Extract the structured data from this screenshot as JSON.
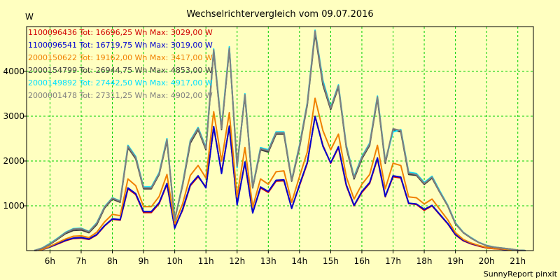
{
  "chart_data": {
    "type": "line",
    "title": "Wechselrichtervergleich vom 09.07.2016",
    "ylabel": "W",
    "xlabel": "",
    "credit": "SunnyReport pinxit",
    "grid": true,
    "grid_color": "#00d000",
    "background": "#ffffc0",
    "plot_background": "#ffffc0",
    "x_unit": "hour",
    "xlim": [
      5.25,
      21.5
    ],
    "ylim": [
      0,
      5000
    ],
    "x_ticks": [
      6,
      7,
      8,
      9,
      10,
      11,
      12,
      13,
      14,
      15,
      16,
      17,
      18,
      19,
      20,
      21
    ],
    "x_tick_labels": [
      "6h",
      "7h",
      "8h",
      "9h",
      "10h",
      "11h",
      "12h",
      "13h",
      "14h",
      "15h",
      "16h",
      "17h",
      "18h",
      "19h",
      "20h",
      "21h"
    ],
    "y_ticks": [
      1000,
      2000,
      3000,
      4000
    ],
    "y_tick_labels": [
      "1000",
      "2000",
      "3000",
      "4000"
    ],
    "legend": [
      {
        "text": "1100096436 Tot: 16696,25 Wh Max: 3029,00 W",
        "color": "#d00000"
      },
      {
        "text": "1100096541 Tot: 16719,75 Wh Max: 3019,00 W",
        "color": "#0000d0"
      },
      {
        "text": "2000150622 Tot: 19162,00 Wh Max: 3417,00 W",
        "color": "#f08000"
      },
      {
        "text": "2000154799 Tot: 26944,75 Wh Max: 4853,00 W",
        "color": "#404040"
      },
      {
        "text": "2000149892 Tot: 27442,50 Wh Max: 4917,00 W",
        "color": "#00e0ff"
      },
      {
        "text": "2000001478 Tot: 27311,25 Wh Max: 4902,00 W",
        "color": "#808080"
      }
    ],
    "x": [
      5.5,
      5.75,
      6.0,
      6.25,
      6.5,
      6.75,
      7.0,
      7.25,
      7.5,
      7.75,
      8.0,
      8.25,
      8.5,
      8.75,
      9.0,
      9.25,
      9.5,
      9.75,
      10.0,
      10.25,
      10.5,
      10.75,
      11.0,
      11.25,
      11.5,
      11.75,
      12.0,
      12.25,
      12.5,
      12.75,
      13.0,
      13.25,
      13.5,
      13.75,
      14.0,
      14.25,
      14.5,
      14.75,
      15.0,
      15.25,
      15.5,
      15.75,
      16.0,
      16.25,
      16.5,
      16.75,
      17.0,
      17.25,
      17.5,
      17.75,
      18.0,
      18.25,
      18.5,
      18.75,
      19.0,
      19.25,
      19.5,
      19.75,
      20.0,
      20.25,
      20.5,
      20.75,
      21.0,
      21.25
    ],
    "series": [
      {
        "name": "1100096436",
        "color": "#d00000",
        "values": [
          0,
          20,
          80,
          150,
          220,
          270,
          280,
          250,
          350,
          550,
          700,
          680,
          1380,
          1250,
          850,
          850,
          1050,
          1480,
          520,
          900,
          1450,
          1650,
          1420,
          2750,
          1750,
          2750,
          1050,
          1950,
          850,
          1400,
          1300,
          1550,
          1560,
          950,
          1450,
          1950,
          3000,
          2350,
          1950,
          2300,
          1450,
          1000,
          1300,
          1500,
          2050,
          1200,
          1650,
          1620,
          1050,
          1030,
          900,
          1000,
          800,
          600,
          350,
          220,
          150,
          100,
          60,
          40,
          30,
          20,
          5,
          0
        ]
      },
      {
        "name": "1100096541",
        "color": "#0000d0",
        "values": [
          0,
          20,
          80,
          160,
          230,
          280,
          290,
          260,
          360,
          560,
          710,
          690,
          1400,
          1270,
          870,
          870,
          1070,
          1500,
          500,
          920,
          1470,
          1670,
          1400,
          2770,
          1720,
          2780,
          1020,
          1980,
          840,
          1420,
          1320,
          1570,
          1580,
          940,
          1470,
          1970,
          2990,
          2330,
          1960,
          2320,
          1470,
          1010,
          1320,
          1520,
          2070,
          1210,
          1670,
          1640,
          1060,
          1040,
          920,
          1010,
          810,
          610,
          360,
          230,
          160,
          110,
          70,
          50,
          30,
          20,
          5,
          0
        ]
      },
      {
        "name": "2000150622",
        "color": "#f08000",
        "values": [
          0,
          25,
          95,
          180,
          260,
          320,
          330,
          290,
          410,
          640,
          810,
          780,
          1600,
          1450,
          980,
          980,
          1210,
          1700,
          600,
          1040,
          1680,
          1900,
          1620,
          3100,
          2000,
          3080,
          1200,
          2300,
          970,
          1600,
          1480,
          1760,
          1780,
          1080,
          1650,
          2200,
          3400,
          2680,
          2250,
          2600,
          1650,
          1150,
          1480,
          1700,
          2350,
          1380,
          1950,
          1900,
          1200,
          1180,
          1040,
          1150,
          920,
          690,
          400,
          250,
          170,
          115,
          70,
          45,
          35,
          22,
          6,
          0
        ]
      },
      {
        "name": "2000154799",
        "color": "#404040",
        "values": [
          0,
          50,
          140,
          260,
          380,
          450,
          460,
          400,
          580,
          950,
          1150,
          1080,
          2300,
          2050,
          1380,
          1380,
          1700,
          2450,
          700,
          1450,
          2400,
          2700,
          2250,
          4450,
          2700,
          4500,
          1900,
          3450,
          1400,
          2250,
          2200,
          2600,
          2600,
          1550,
          2300,
          3250,
          4850,
          3700,
          3150,
          3650,
          2300,
          1600,
          2050,
          2350,
          3400,
          1950,
          2700,
          2650,
          1700,
          1680,
          1480,
          1620,
          1300,
          1000,
          600,
          400,
          280,
          180,
          110,
          75,
          55,
          35,
          10,
          0
        ]
      },
      {
        "name": "2000149892",
        "color": "#00e0ff",
        "values": [
          0,
          60,
          160,
          280,
          410,
          490,
          500,
          430,
          620,
          980,
          1180,
          1110,
          2350,
          2100,
          1420,
          1420,
          1740,
          2500,
          680,
          1490,
          2460,
          2750,
          2300,
          4500,
          2750,
          4550,
          1850,
          3500,
          1420,
          2300,
          2250,
          2650,
          2650,
          1580,
          2350,
          3300,
          4920,
          3800,
          3200,
          3700,
          2350,
          1650,
          2100,
          2400,
          3450,
          2000,
          2650,
          2700,
          1750,
          1720,
          1520,
          1660,
          1330,
          1020,
          620,
          410,
          290,
          185,
          115,
          78,
          57,
          36,
          10,
          0
        ]
      },
      {
        "name": "2000001478",
        "color": "#808080",
        "values": [
          0,
          55,
          150,
          270,
          400,
          480,
          490,
          420,
          610,
          970,
          1170,
          1100,
          2330,
          2080,
          1400,
          1400,
          1720,
          2480,
          690,
          1470,
          2440,
          2730,
          2280,
          4480,
          2720,
          4520,
          1880,
          3480,
          1410,
          2280,
          2230,
          2630,
          2630,
          1570,
          2330,
          3280,
          4900,
          3750,
          3180,
          3680,
          2330,
          1630,
          2080,
          2380,
          3430,
          1980,
          2720,
          2680,
          1730,
          1700,
          1500,
          1640,
          1310,
          1010,
          610,
          405,
          285,
          182,
          112,
          76,
          56,
          35,
          10,
          0
        ]
      }
    ]
  }
}
